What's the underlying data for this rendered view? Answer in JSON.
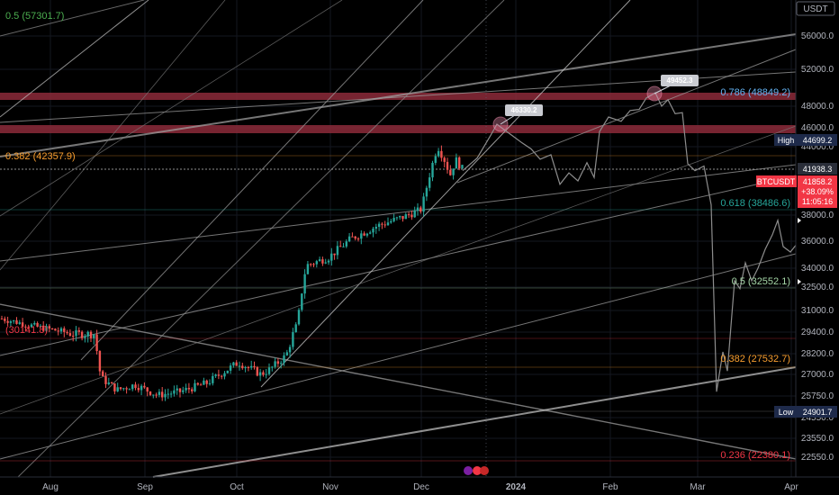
{
  "currency": "USDT",
  "chart_data": {
    "type": "candlestick",
    "symbol": "BTCUSDT",
    "y_ticks": [
      56000,
      52000,
      48000,
      46000,
      44000,
      38000,
      36000,
      34000,
      32500,
      31000,
      29400,
      28200,
      27000,
      25750,
      24550,
      23550,
      22550
    ],
    "x_labels": [
      {
        "label": "Aug",
        "x": 56,
        "bold": false
      },
      {
        "label": "Sep",
        "x": 161,
        "bold": false
      },
      {
        "label": "Oct",
        "x": 263,
        "bold": false
      },
      {
        "label": "Nov",
        "x": 367,
        "bold": false
      },
      {
        "label": "Dec",
        "x": 468,
        "bold": false
      },
      {
        "label": "2024",
        "x": 573,
        "bold": true
      },
      {
        "label": "Feb",
        "x": 678,
        "bold": false
      },
      {
        "label": "Mar",
        "x": 775,
        "bold": false
      },
      {
        "label": "Apr",
        "x": 879,
        "bold": false
      }
    ],
    "fib_levels_left": [
      {
        "ratio": "0.5",
        "value": "(57301.7)",
        "color": "#4caf50",
        "y": 17
      },
      {
        "ratio": "0.382",
        "value": "(42357.9)",
        "color": "#f89e2f",
        "y": 173
      },
      {
        "ratio": "",
        "value": "(30141.8)",
        "color": "#f23645",
        "y": 366
      }
    ],
    "fib_levels_right": [
      {
        "ratio": "0.786",
        "value": "(48849.2)",
        "color": "#64b5f6",
        "y": 102
      },
      {
        "ratio": "0.618",
        "value": "(38486.6)",
        "color": "#26a69a",
        "y": 225
      },
      {
        "ratio": "0.5",
        "value": "(32552.1)",
        "color": "#a5d6a7",
        "y": 312
      },
      {
        "ratio": "0.382",
        "value": "(27532.7)",
        "color": "#f89e2f",
        "y": 398
      },
      {
        "ratio": "0.236",
        "value": "(22380.1)",
        "color": "#f23645",
        "y": 505
      }
    ],
    "callouts": [
      {
        "label": "46330.2"
      },
      {
        "label": "49452.3"
      }
    ],
    "axis_tags": {
      "high_label": "High",
      "high_value": "44699.2",
      "dotted_value": "41938.3",
      "symbol": "BTCUSDT",
      "price": "41858.2",
      "change": "+38.09%",
      "timer": "11:05:16",
      "low_label": "Low",
      "low_value": "24901.7"
    },
    "grid": true,
    "legend": "none"
  }
}
